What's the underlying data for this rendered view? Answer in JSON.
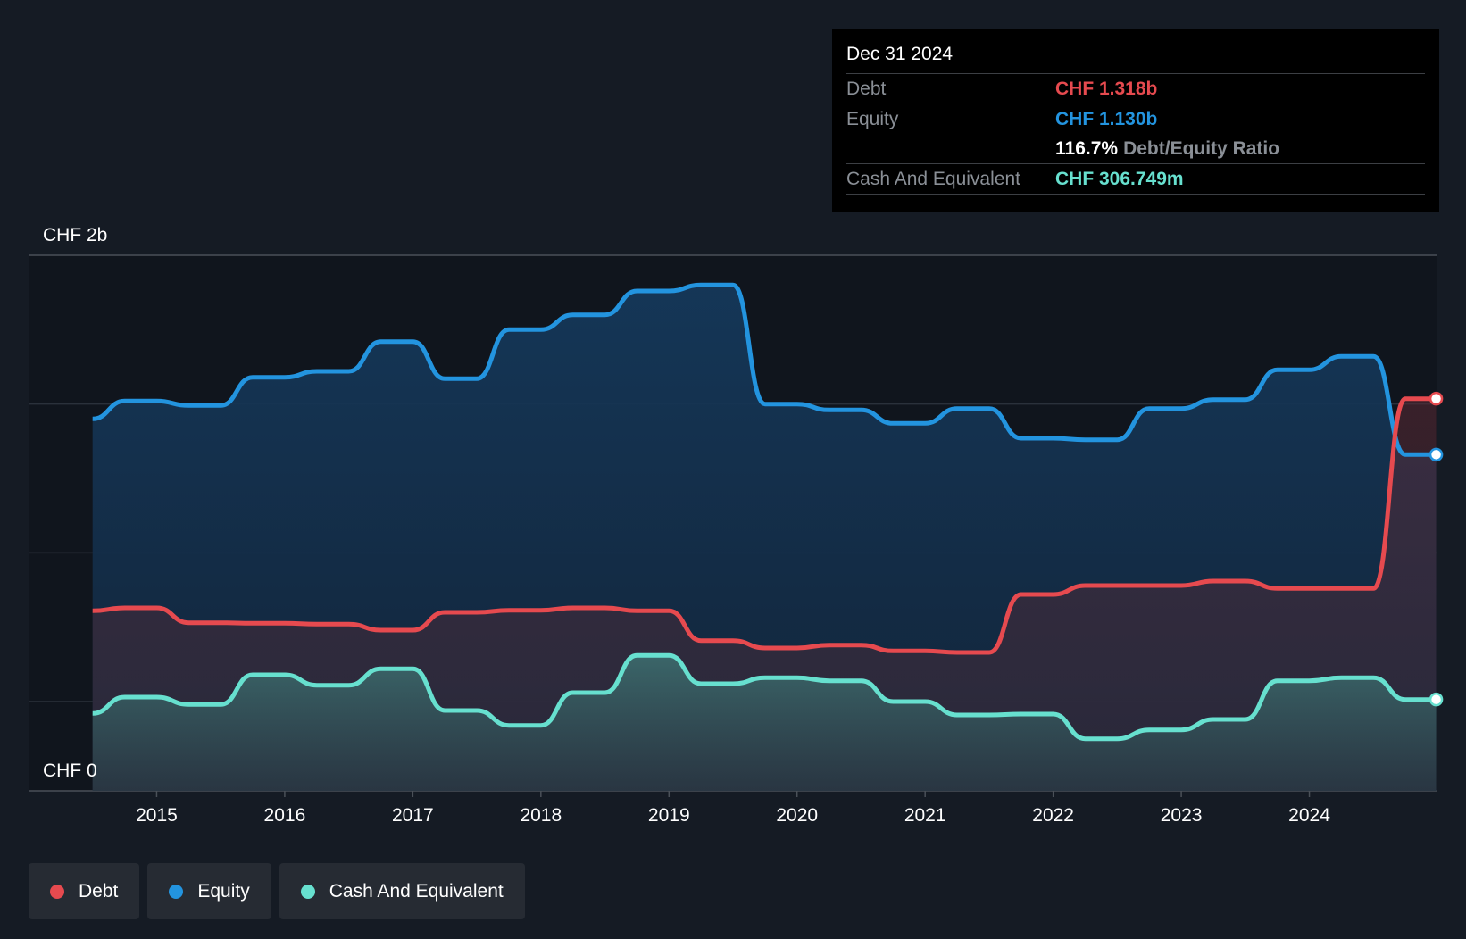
{
  "chart_data": {
    "type": "area",
    "y_top_label": "CHF 2b",
    "y_zero_label": "CHF 0",
    "ylim": [
      0,
      1.8
    ],
    "xlim": [
      2014.0,
      2024.99
    ],
    "grid": true,
    "x_ticks": [
      "2015",
      "2016",
      "2017",
      "2018",
      "2019",
      "2020",
      "2021",
      "2022",
      "2023",
      "2024"
    ],
    "series": [
      {
        "name": "Equity",
        "color": "#2394df",
        "x": [
          2014.5,
          2014.75,
          2015.0,
          2015.25,
          2015.5,
          2015.75,
          2016.0,
          2016.25,
          2016.5,
          2016.75,
          2017.0,
          2017.25,
          2017.5,
          2017.75,
          2018.0,
          2018.25,
          2018.5,
          2018.75,
          2019.0,
          2019.25,
          2019.5,
          2019.75,
          2020.0,
          2020.25,
          2020.5,
          2020.75,
          2021.0,
          2021.25,
          2021.5,
          2021.75,
          2022.0,
          2022.25,
          2022.5,
          2022.75,
          2023.0,
          2023.25,
          2023.5,
          2023.75,
          2024.0,
          2024.25,
          2024.5,
          2024.75,
          2024.99
        ],
        "values": [
          1.25,
          1.31,
          1.31,
          1.295,
          1.295,
          1.39,
          1.39,
          1.41,
          1.41,
          1.51,
          1.51,
          1.385,
          1.385,
          1.55,
          1.55,
          1.6,
          1.6,
          1.68,
          1.68,
          1.7,
          1.7,
          1.3,
          1.3,
          1.28,
          1.28,
          1.235,
          1.235,
          1.285,
          1.285,
          1.185,
          1.185,
          1.18,
          1.18,
          1.285,
          1.285,
          1.315,
          1.315,
          1.415,
          1.415,
          1.46,
          1.46,
          1.13,
          1.13
        ]
      },
      {
        "name": "Debt",
        "color": "#e64a4f",
        "x": [
          2014.5,
          2014.75,
          2015.0,
          2015.25,
          2015.5,
          2015.75,
          2016.0,
          2016.25,
          2016.5,
          2016.75,
          2017.0,
          2017.25,
          2017.5,
          2017.75,
          2018.0,
          2018.25,
          2018.5,
          2018.75,
          2019.0,
          2019.25,
          2019.5,
          2019.75,
          2020.0,
          2020.25,
          2020.5,
          2020.75,
          2021.0,
          2021.25,
          2021.5,
          2021.75,
          2022.0,
          2022.25,
          2022.5,
          2022.75,
          2023.0,
          2023.25,
          2023.5,
          2023.75,
          2024.0,
          2024.25,
          2024.5,
          2024.75,
          2024.99
        ],
        "values": [
          0.605,
          0.615,
          0.615,
          0.565,
          0.565,
          0.563,
          0.563,
          0.56,
          0.56,
          0.54,
          0.54,
          0.6,
          0.6,
          0.607,
          0.607,
          0.615,
          0.615,
          0.605,
          0.605,
          0.505,
          0.505,
          0.48,
          0.48,
          0.49,
          0.49,
          0.47,
          0.47,
          0.465,
          0.465,
          0.66,
          0.66,
          0.69,
          0.69,
          0.69,
          0.69,
          0.705,
          0.705,
          0.68,
          0.68,
          0.68,
          0.68,
          1.318,
          1.318
        ]
      },
      {
        "name": "Cash And Equivalent",
        "color": "#67e0cf",
        "x": [
          2014.5,
          2014.75,
          2015.0,
          2015.25,
          2015.5,
          2015.75,
          2016.0,
          2016.25,
          2016.5,
          2016.75,
          2017.0,
          2017.25,
          2017.5,
          2017.75,
          2018.0,
          2018.25,
          2018.5,
          2018.75,
          2019.0,
          2019.25,
          2019.5,
          2019.75,
          2020.0,
          2020.25,
          2020.5,
          2020.75,
          2021.0,
          2021.25,
          2021.5,
          2021.75,
          2022.0,
          2022.25,
          2022.5,
          2022.75,
          2023.0,
          2023.25,
          2023.5,
          2023.75,
          2024.0,
          2024.25,
          2024.5,
          2024.75,
          2024.99
        ],
        "values": [
          0.26,
          0.315,
          0.315,
          0.29,
          0.29,
          0.39,
          0.39,
          0.355,
          0.355,
          0.41,
          0.41,
          0.27,
          0.27,
          0.22,
          0.22,
          0.33,
          0.33,
          0.455,
          0.455,
          0.36,
          0.36,
          0.38,
          0.38,
          0.37,
          0.37,
          0.3,
          0.3,
          0.255,
          0.255,
          0.258,
          0.258,
          0.175,
          0.175,
          0.205,
          0.205,
          0.24,
          0.24,
          0.37,
          0.37,
          0.38,
          0.38,
          0.307,
          0.307
        ]
      }
    ]
  },
  "tooltip": {
    "date": "Dec 31 2024",
    "debt_label": "Debt",
    "debt_value": "CHF 1.318b",
    "equity_label": "Equity",
    "equity_value": "CHF 1.130b",
    "ratio_value": "116.7%",
    "ratio_label": "Debt/Equity Ratio",
    "cash_label": "Cash And Equivalent",
    "cash_value": "CHF 306.749m"
  },
  "legend": [
    {
      "label": "Debt",
      "color": "#e64a4f"
    },
    {
      "label": "Equity",
      "color": "#2394df"
    },
    {
      "label": "Cash And Equivalent",
      "color": "#67e0cf"
    }
  ]
}
